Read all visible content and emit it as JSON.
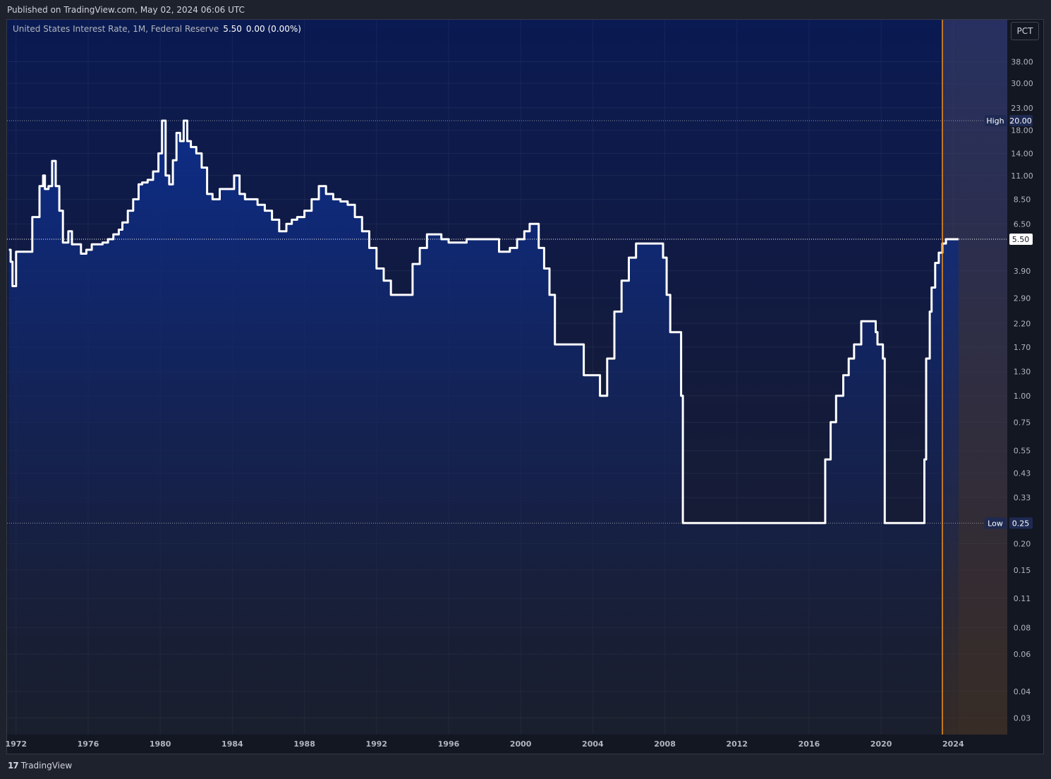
{
  "header": {
    "published": "Published on TradingView.com, May 02, 2024 06:06 UTC"
  },
  "legend": {
    "title": "United States Interest Rate, 1M, Federal Reserve",
    "value": "5.50",
    "change": "0.00 (0.00%)"
  },
  "scale_button": "PCT",
  "footer": {
    "brand": "TradingView",
    "logo_glyph": "17"
  },
  "colors": {
    "line": "#ffffff",
    "fill_top": "#0d2e8c",
    "bg_top": "#0a1a52",
    "bg_bottom": "#1a1f2e",
    "marker": "#f7931a",
    "axis_text": "#b2b5be"
  },
  "chart_data": {
    "type": "area",
    "title": "United States Interest Rate, 1M, Federal Reserve",
    "y_scale": "log",
    "ylim": [
      0.025,
      60
    ],
    "xlim": [
      1971.5,
      2027.0
    ],
    "x_ticks": [
      "1972",
      "1976",
      "1980",
      "1984",
      "1988",
      "1992",
      "1996",
      "2000",
      "2004",
      "2008",
      "2012",
      "2016",
      "2020",
      "2024"
    ],
    "y_ticks": [
      "38.00",
      "30.00",
      "23.00",
      "18.00",
      "14.00",
      "11.00",
      "8.50",
      "6.50",
      "3.90",
      "2.90",
      "2.20",
      "1.70",
      "1.30",
      "1.00",
      "0.75",
      "0.55",
      "0.43",
      "0.33",
      "0.20",
      "0.15",
      "0.11",
      "0.08",
      "0.06",
      "0.04",
      "0.03"
    ],
    "high": {
      "label": "High",
      "value": 20.0,
      "text": "20.00"
    },
    "low": {
      "label": "Low",
      "value": 0.25,
      "text": "0.25"
    },
    "last": {
      "value": 5.5,
      "text": "5.50"
    },
    "marker_x": 2023.4,
    "shaded_from": 2023.4,
    "series": [
      {
        "name": "United States Interest Rate",
        "x": [
          1971.6,
          1971.7,
          1971.8,
          1972.0,
          1972.2,
          1972.5,
          1972.9,
          1973.3,
          1973.5,
          1973.6,
          1973.8,
          1974.0,
          1974.2,
          1974.4,
          1974.6,
          1974.9,
          1975.1,
          1975.3,
          1975.6,
          1975.9,
          1976.2,
          1976.5,
          1976.8,
          1977.1,
          1977.4,
          1977.7,
          1977.9,
          1978.2,
          1978.5,
          1978.8,
          1979.0,
          1979.3,
          1979.6,
          1979.9,
          1980.1,
          1980.3,
          1980.5,
          1980.7,
          1980.9,
          1981.1,
          1981.3,
          1981.5,
          1981.7,
          1982.0,
          1982.3,
          1982.6,
          1982.9,
          1983.3,
          1983.7,
          1984.1,
          1984.4,
          1984.7,
          1985.0,
          1985.4,
          1985.8,
          1986.2,
          1986.6,
          1987.0,
          1987.3,
          1987.6,
          1988.0,
          1988.4,
          1988.8,
          1989.2,
          1989.6,
          1990.0,
          1990.4,
          1990.8,
          1991.2,
          1991.6,
          1992.0,
          1992.4,
          1992.8,
          1993.4,
          1994.0,
          1994.4,
          1994.8,
          1995.2,
          1995.6,
          1996.0,
          1997.0,
          1998.0,
          1998.8,
          1999.4,
          1999.8,
          2000.2,
          2000.5,
          2001.0,
          2001.3,
          2001.6,
          2001.9,
          2002.9,
          2003.5,
          2004.4,
          2004.8,
          2005.2,
          2005.6,
          2006.0,
          2006.4,
          2007.6,
          2007.9,
          2008.1,
          2008.3,
          2008.9,
          2009.0,
          2015.9,
          2016.9,
          2017.2,
          2017.5,
          2017.9,
          2018.2,
          2018.5,
          2018.9,
          2019.5,
          2019.7,
          2019.8,
          2020.1,
          2020.2,
          2022.2,
          2022.4,
          2022.5,
          2022.7,
          2022.8,
          2023.0,
          2023.2,
          2023.4,
          2023.6,
          2024.3
        ],
        "y": [
          4.9,
          4.3,
          3.3,
          4.8,
          4.8,
          4.8,
          7.0,
          9.8,
          11.0,
          9.5,
          9.8,
          12.9,
          9.8,
          7.5,
          5.3,
          6.0,
          5.2,
          5.2,
          4.7,
          4.9,
          5.2,
          5.2,
          5.3,
          5.5,
          5.8,
          6.1,
          6.6,
          7.5,
          8.5,
          10.0,
          10.2,
          10.5,
          11.5,
          14.0,
          20.0,
          11.0,
          10.0,
          13.0,
          17.5,
          16.0,
          20.0,
          16.0,
          15.0,
          14.0,
          12.0,
          9.0,
          8.5,
          9.5,
          9.5,
          11.0,
          9.0,
          8.5,
          8.5,
          8.0,
          7.5,
          6.8,
          6.0,
          6.5,
          6.8,
          7.0,
          7.5,
          8.5,
          9.8,
          9.0,
          8.5,
          8.3,
          8.0,
          7.0,
          6.0,
          5.0,
          4.0,
          3.5,
          3.0,
          3.0,
          4.2,
          5.0,
          5.8,
          5.8,
          5.5,
          5.3,
          5.5,
          5.5,
          4.8,
          5.0,
          5.5,
          6.0,
          6.5,
          5.0,
          4.0,
          3.0,
          1.75,
          1.75,
          1.25,
          1.0,
          1.5,
          2.5,
          3.5,
          4.5,
          5.25,
          5.25,
          4.5,
          3.0,
          2.0,
          1.0,
          0.25,
          0.25,
          0.5,
          0.75,
          1.0,
          1.25,
          1.5,
          1.75,
          2.25,
          2.25,
          2.0,
          1.75,
          1.5,
          0.25,
          0.25,
          0.5,
          1.5,
          2.5,
          3.25,
          4.25,
          4.75,
          5.25,
          5.5,
          5.5
        ]
      }
    ]
  }
}
